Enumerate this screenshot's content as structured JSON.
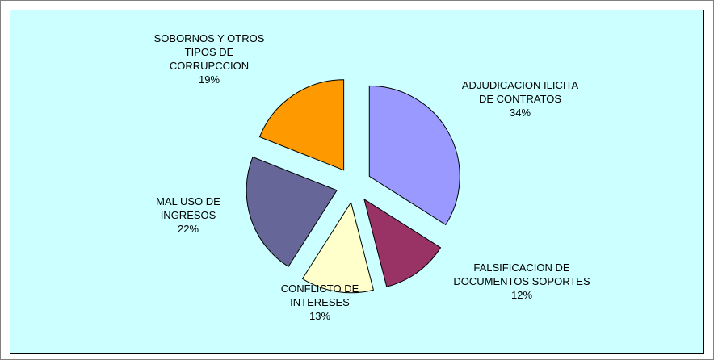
{
  "chart_data": {
    "type": "pie",
    "categories": [
      "ADJUDICACION ILICITA DE CONTRATOS",
      "FALSIFICACION DE DOCUMENTOS SOPORTES",
      "CONFLICTO DE INTERESES",
      "MAL USO DE INGRESOS",
      "SOBORNOS Y OTROS TIPOS DE CORRUPCCION"
    ],
    "values": [
      34,
      12,
      13,
      22,
      19
    ],
    "value_labels": [
      "34%",
      "12%",
      "13%",
      "22%",
      "19%"
    ],
    "colors": [
      "#9999ff",
      "#993366",
      "#ffffcc",
      "#666699",
      "#ff9900"
    ]
  }
}
